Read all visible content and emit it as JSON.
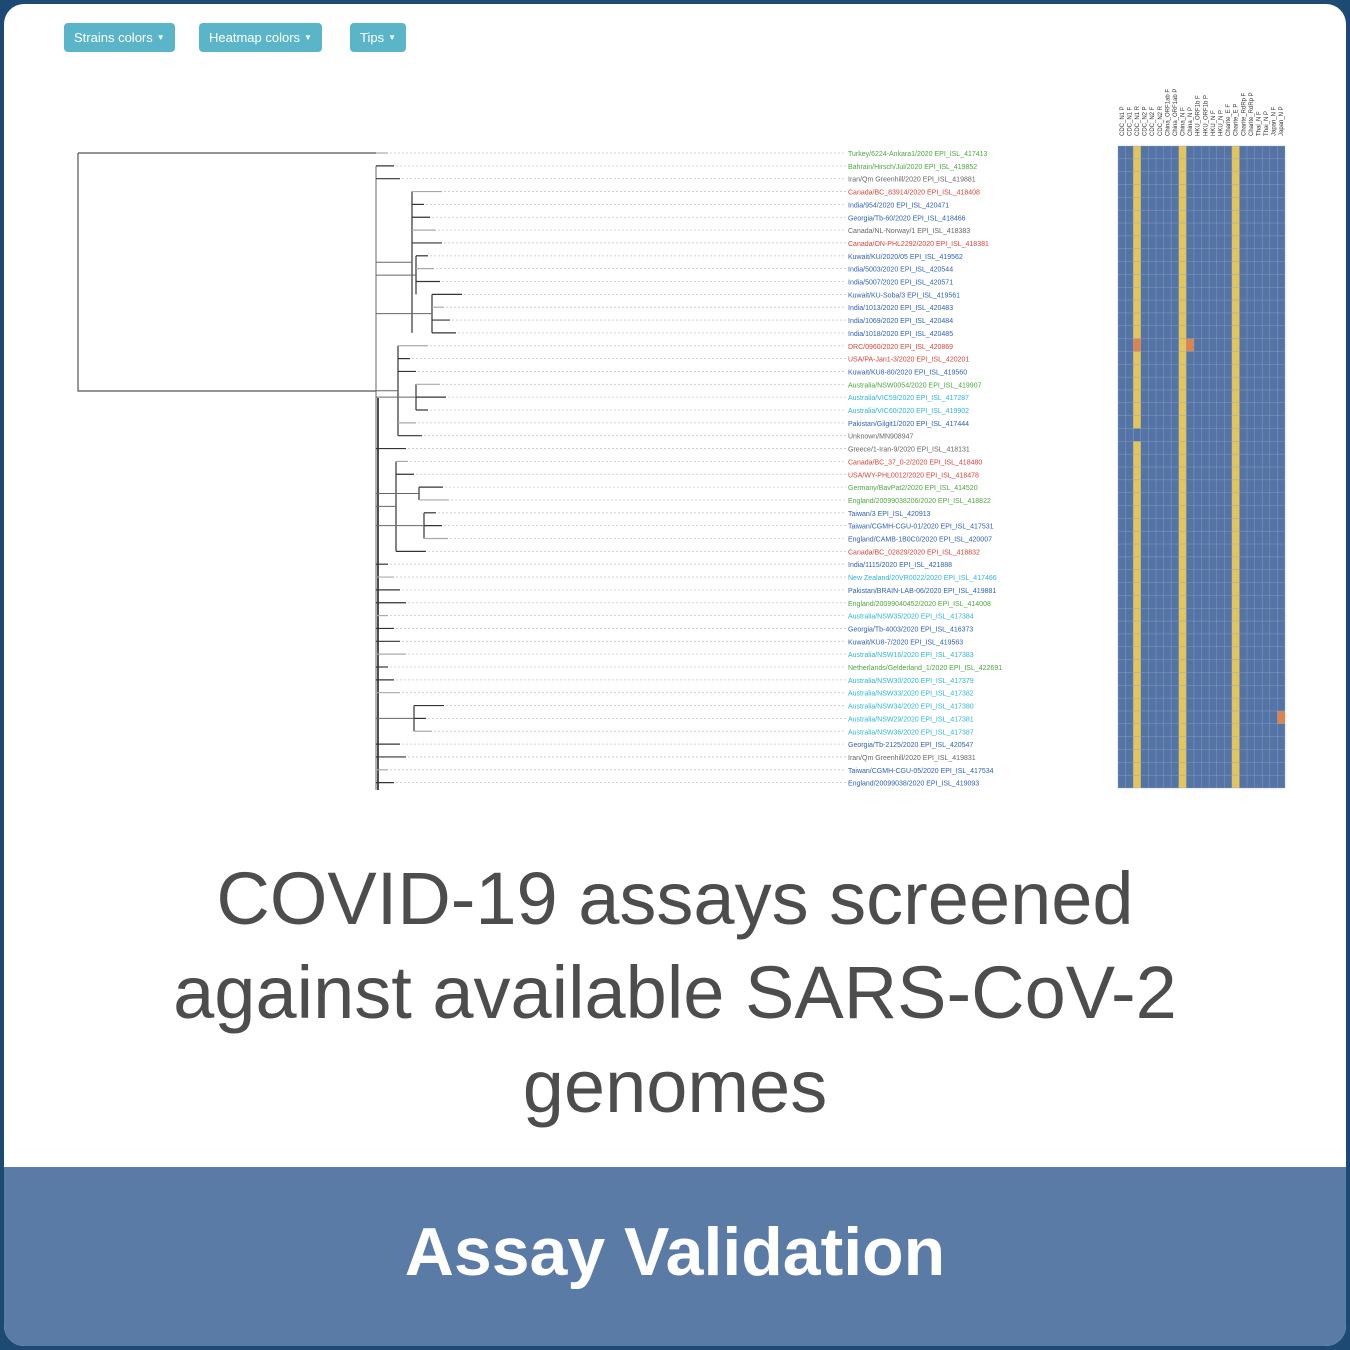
{
  "toolbar": {
    "strains_colors_label": "Strains colors",
    "heatmap_colors_label": "Heatmap colors",
    "tips_label": "Tips",
    "caret_icon": "caret-down-icon"
  },
  "caption": {
    "line1": "COVID-19 assays screened",
    "line2": "against available SARS-CoV-2",
    "line3": "genomes"
  },
  "banner": {
    "title": "Assay Validation"
  },
  "colors": {
    "background": "#1d4a73",
    "button": "#5bb5c9",
    "banner": "#5a7ba5",
    "caption_text": "#4d4d4d",
    "heat_blue": "#5574a6",
    "heat_gold": "#e4c55a",
    "heat_orange": "#dc8350",
    "label_green": "#4da641",
    "label_red": "#d9433a",
    "label_blue": "#2f5fb3",
    "label_cyan": "#2eb5d6",
    "label_gray": "#666666"
  },
  "heatmap": {
    "columns": [
      "CDC_N1 P",
      "CDC_N1 F",
      "CDC_N1 R",
      "CDC_N2 P",
      "CDC_N2 F",
      "CDC_N2 R",
      "China_ORF1ab F",
      "China_ORF1ab P",
      "China_N F",
      "China_N P",
      "HKU_ORF1b F",
      "HKU_ORF1b P",
      "HKU_N F",
      "HKU_N P",
      "Charite_E F",
      "Charite_E P",
      "Charite_RdRp F",
      "Charite_RdRp P",
      "Thai_N F",
      "Thai_N P",
      "Japan_N F",
      "Japan_N P"
    ],
    "gold_columns": [
      2,
      8,
      15
    ],
    "orange_cells": [
      {
        "row": 15,
        "col": 2
      },
      {
        "row": 15,
        "col": 9
      },
      {
        "row": 44,
        "col": 21
      }
    ],
    "gap_cells": [
      {
        "row": 22,
        "col": 2
      }
    ]
  },
  "strains": [
    {
      "name": "Turkey/6224-Ankara1/2020 EPI_ISL_417413",
      "color": "green"
    },
    {
      "name": "Bahrain/Hirsch/Jul/2020 EPI_ISL_419852",
      "color": "green"
    },
    {
      "name": "Iran/Qm Greenhill/2020 EPI_ISL_419881",
      "color": "gray"
    },
    {
      "name": "Canada/BC_83914/2020 EPI_ISL_418408",
      "color": "red"
    },
    {
      "name": "India/954/2020 EPI_ISL_420471",
      "color": "blue"
    },
    {
      "name": "Georgia/Tb-60/2020 EPI_ISL_418466",
      "color": "blue"
    },
    {
      "name": "Canada/NL-Norway/1 EPI_ISL_418383",
      "color": "gray"
    },
    {
      "name": "Canada/ON-PHL2292/2020 EPI_ISL_418381",
      "color": "red"
    },
    {
      "name": "Kuwait/KU/2020/05 EPI_ISL_419562",
      "color": "blue"
    },
    {
      "name": "India/5003/2020 EPI_ISL_420544",
      "color": "blue"
    },
    {
      "name": "India/5007/2020 EPI_ISL_420571",
      "color": "blue"
    },
    {
      "name": "Kuwait/KU-Soba/3 EPI_ISL_419561",
      "color": "blue"
    },
    {
      "name": "India/1013/2020 EPI_ISL_420483",
      "color": "blue"
    },
    {
      "name": "India/1069/2020 EPI_ISL_420484",
      "color": "blue"
    },
    {
      "name": "India/1018/2020 EPI_ISL_420485",
      "color": "blue"
    },
    {
      "name": "DRC/0960/2020 EPI_ISL_420869",
      "color": "red"
    },
    {
      "name": "USA/PA-Jan1-3/2020 EPI_ISL_420201",
      "color": "red"
    },
    {
      "name": "Kuwait/KU8-80/2020 EPI_ISL_419560",
      "color": "blue"
    },
    {
      "name": "Australia/NSW0054/2020 EPI_ISL_419907",
      "color": "green"
    },
    {
      "name": "Australia/VIC59/2020 EPI_ISL_417287",
      "color": "cyan"
    },
    {
      "name": "Australia/VIC60/2020 EPI_ISL_419902",
      "color": "cyan"
    },
    {
      "name": "Pakistan/Gilgit1/2020 EPI_ISL_417444",
      "color": "blue"
    },
    {
      "name": "Unknown/MN908947",
      "color": "gray"
    },
    {
      "name": "Greece/1-Iran-9/2020 EPI_ISL_418131",
      "color": "gray"
    },
    {
      "name": "Canada/BC_37_0-2/2020 EPI_ISL_418480",
      "color": "red"
    },
    {
      "name": "USA/WY-PHL0012/2020 EPI_ISL_418478",
      "color": "red"
    },
    {
      "name": "Germany/BavPat2/2020 EPI_ISL_414520",
      "color": "green"
    },
    {
      "name": "England/20099038206/2020 EPI_ISL_418822",
      "color": "green"
    },
    {
      "name": "Taiwan/3 EPI_ISL_420913",
      "color": "blue"
    },
    {
      "name": "Taiwan/CGMH-CGU-01/2020 EPI_ISL_417531",
      "color": "blue"
    },
    {
      "name": "England/CAMB-1B0C0/2020 EPI_ISL_420007",
      "color": "blue"
    },
    {
      "name": "Canada/BC_02829/2020 EPI_ISL_418832",
      "color": "red"
    },
    {
      "name": "India/1115/2020 EPI_ISL_421888",
      "color": "blue"
    },
    {
      "name": "New Zealand/20VR0022/2020 EPI_ISL_417466",
      "color": "cyan"
    },
    {
      "name": "Pakistan/BRAIN-LAB-06/2020 EPI_ISL_419881",
      "color": "blue"
    },
    {
      "name": "England/20099040452/2020 EPI_ISL_414008",
      "color": "green"
    },
    {
      "name": "Australia/NSW35/2020 EPI_ISL_417384",
      "color": "cyan"
    },
    {
      "name": "Georgia/Tb-4003/2020 EPI_ISL_416373",
      "color": "blue"
    },
    {
      "name": "Kuwait/KU8-7/2020 EPI_ISL_419563",
      "color": "blue"
    },
    {
      "name": "Australia/NSW16/2020 EPI_ISL_417383",
      "color": "cyan"
    },
    {
      "name": "Netherlands/Gelderland_1/2020 EPI_ISL_422691",
      "color": "green"
    },
    {
      "name": "Australia/NSW30/2020 EPI_ISL_417379",
      "color": "cyan"
    },
    {
      "name": "Australia/NSW33/2020 EPI_ISL_417382",
      "color": "cyan"
    },
    {
      "name": "Australia/NSW34/2020 EPI_ISL_417380",
      "color": "cyan"
    },
    {
      "name": "Australia/NSW29/2020 EPI_ISL_417381",
      "color": "cyan"
    },
    {
      "name": "Australia/NSW36/2020 EPI_ISL_417387",
      "color": "cyan"
    },
    {
      "name": "Georgia/Tb-2125/2020 EPI_ISL_420547",
      "color": "blue"
    },
    {
      "name": "Iran/Qm Greenhill/2020 EPI_ISL_419831",
      "color": "gray"
    },
    {
      "name": "Taiwan/CGMH-CGU-05/2020 EPI_ISL_417534",
      "color": "blue"
    },
    {
      "name": "England/20099038/2020 EPI_ISL_419093",
      "color": "blue"
    }
  ]
}
